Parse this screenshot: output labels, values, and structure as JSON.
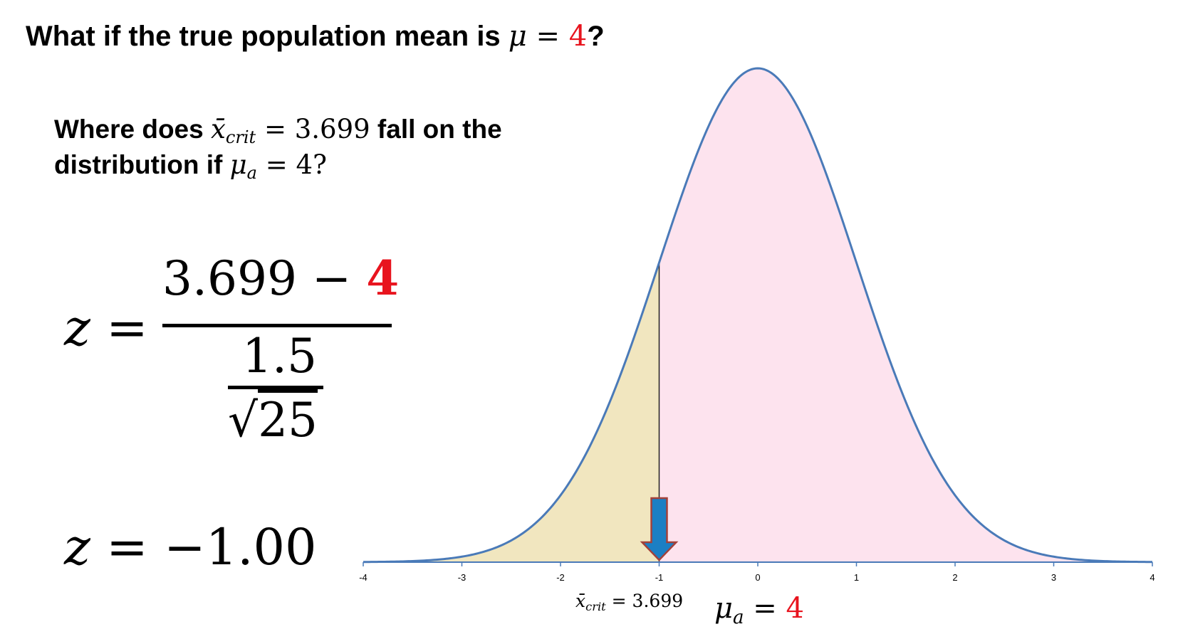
{
  "slide": {
    "title_prefix": "What if the true population mean is ",
    "title_mu": "μ",
    "title_eq": " = ",
    "title_value": "4",
    "title_suffix": "?",
    "question_line1_prefix": "Where does ",
    "question_xbar": "x̄",
    "question_crit_sub": "crit",
    "question_line1_eq": " = 3.699",
    "question_line1_suffix": " fall on the",
    "question_line2_prefix": "distribution if ",
    "question_mu": "μ",
    "question_mu_sub": "a",
    "question_line2_eq": " = 4?"
  },
  "formula": {
    "z": "z",
    "equals": " = ",
    "numerator_left": "3.699 − ",
    "numerator_red": "4",
    "denominator_top": "1.5",
    "sqrt_symbol": "√",
    "sqrt_value": "25",
    "result": "−1.00"
  },
  "colors": {
    "curve": "#4a7ab8",
    "left_fill": "#f1e6bf",
    "right_fill": "#fde3ee",
    "arrow_fill": "#1b7fc4",
    "arrow_stroke": "#a3413a",
    "accent_red": "#e8141e"
  },
  "chart_data": {
    "type": "area",
    "distribution": "standard normal",
    "xlim": [
      -4,
      4
    ],
    "x_ticks": [
      "-4",
      "-3",
      "-2",
      "-1",
      "0",
      "1",
      "2",
      "3",
      "4"
    ],
    "tick_values": [
      -4,
      -3,
      -2,
      -1,
      0,
      1,
      2,
      3,
      4
    ],
    "mean": 0,
    "sd": 1,
    "critical_z": -1,
    "shaded_left_label": "",
    "annotation_xcrit": {
      "xbar": "x̄",
      "sub": "crit",
      "text": " = 3.699"
    },
    "annotation_mu": {
      "mu": "μ",
      "sub": "a",
      "eq": " = ",
      "value": "4"
    }
  }
}
